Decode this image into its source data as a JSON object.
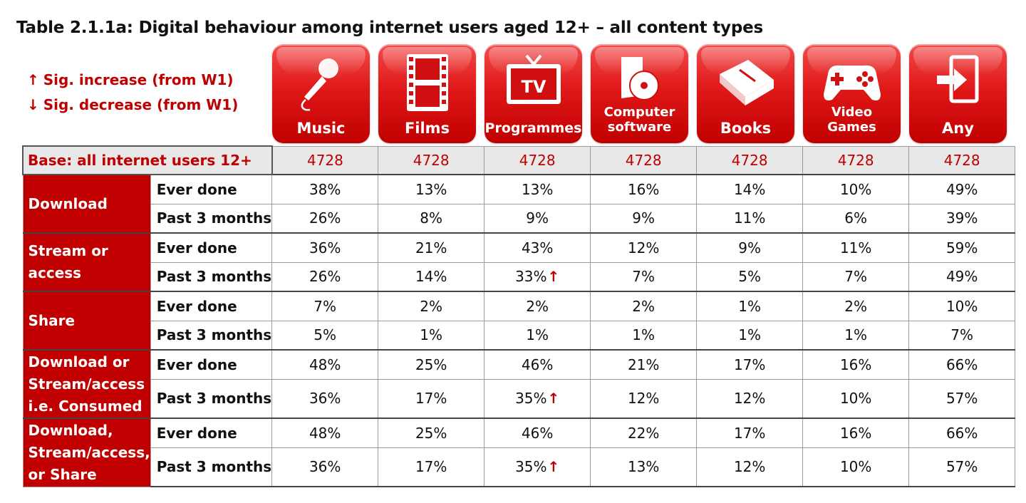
{
  "title": "Table 2.1.1a: Digital behaviour among internet users aged 12+ – all content types",
  "legend": {
    "increase_arrow": "↑",
    "increase_label": "Sig. increase (from W1)",
    "decrease_arrow": "↓",
    "decrease_label": "Sig. decrease (from W1)"
  },
  "columns": [
    {
      "label": "Music",
      "icon": "microphone-icon"
    },
    {
      "label": "Films",
      "icon": "film-strip-icon"
    },
    {
      "label": "Programmes",
      "icon": "tv-icon",
      "icon_text": "TV"
    },
    {
      "label": "Computer software",
      "line1": "Computer",
      "line2": "software",
      "icon": "software-disc-icon"
    },
    {
      "label": "Books",
      "icon": "book-icon"
    },
    {
      "label": "Video Games",
      "line1": "Video",
      "line2": "Games",
      "icon": "gamepad-icon"
    },
    {
      "label": "Any",
      "icon": "enter-door-icon"
    }
  ],
  "base": {
    "label": "Base: all internet users 12+",
    "values": [
      "4728",
      "4728",
      "4728",
      "4728",
      "4728",
      "4728",
      "4728"
    ]
  },
  "up_arrow": "↑",
  "groups": [
    {
      "label": "Download",
      "rows": [
        {
          "metric": "Ever done",
          "values": [
            "38%",
            "13%",
            "13%",
            "16%",
            "14%",
            "10%",
            "49%"
          ]
        },
        {
          "metric": "Past 3 months",
          "values": [
            "26%",
            "8%",
            "9%",
            "9%",
            "11%",
            "6%",
            "39%"
          ]
        }
      ]
    },
    {
      "label": "Stream or access",
      "rows": [
        {
          "metric": "Ever done",
          "values": [
            "36%",
            "21%",
            "43%",
            "12%",
            "9%",
            "11%",
            "59%"
          ]
        },
        {
          "metric": "Past 3 months",
          "values": [
            "26%",
            "14%",
            "33%",
            "7%",
            "5%",
            "7%",
            "49%"
          ]
        }
      ]
    },
    {
      "label": "Share",
      "rows": [
        {
          "metric": "Ever done",
          "values": [
            "7%",
            "2%",
            "2%",
            "2%",
            "1%",
            "2%",
            "10%"
          ]
        },
        {
          "metric": "Past 3 months",
          "values": [
            "5%",
            "1%",
            "1%",
            "1%",
            "1%",
            "1%",
            "7%"
          ]
        }
      ]
    },
    {
      "label": "Download or Stream/access i.e. Consumed",
      "rows": [
        {
          "metric": "Ever done",
          "values": [
            "48%",
            "25%",
            "46%",
            "21%",
            "17%",
            "16%",
            "66%"
          ]
        },
        {
          "metric": "Past 3 months",
          "values": [
            "36%",
            "17%",
            "35%",
            "12%",
            "12%",
            "10%",
            "57%"
          ]
        }
      ]
    },
    {
      "label": "Download, Stream/access, or Share",
      "rows": [
        {
          "metric": "Ever done",
          "values": [
            "48%",
            "25%",
            "46%",
            "22%",
            "17%",
            "16%",
            "66%"
          ]
        },
        {
          "metric": "Past 3 months",
          "values": [
            "36%",
            "17%",
            "35%",
            "13%",
            "12%",
            "10%",
            "57%"
          ]
        }
      ]
    }
  ],
  "colors": {
    "accent": "#c00000",
    "base_bg": "#e8e8e8"
  }
}
